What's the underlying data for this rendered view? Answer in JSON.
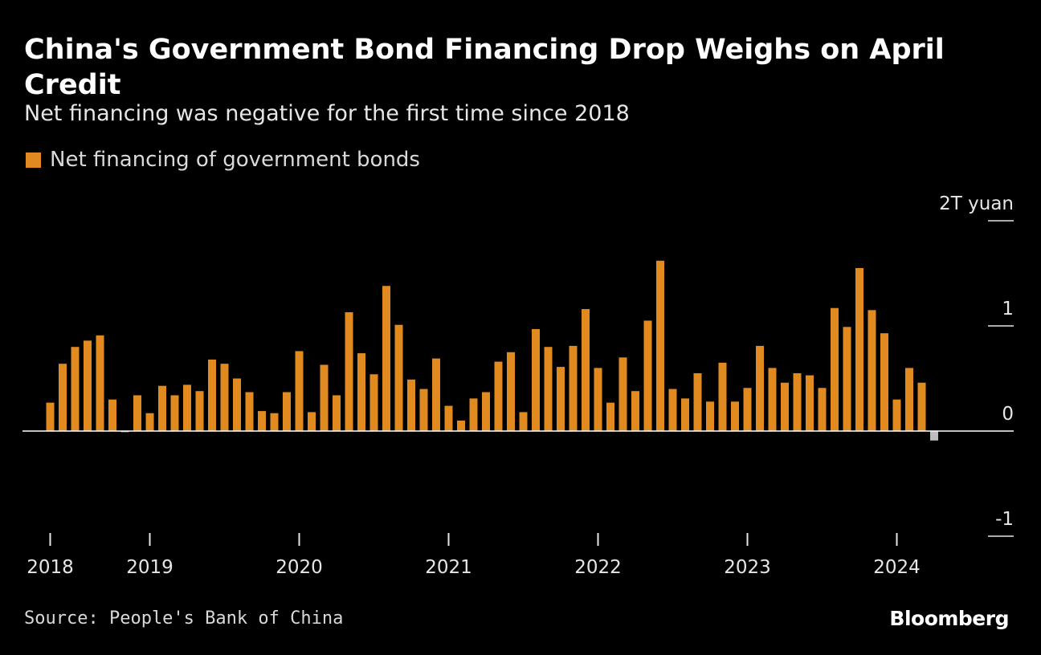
{
  "header": {
    "title": "China's Government Bond Financing Drop Weighs on April Credit",
    "subtitle": "Net financing was negative for the first time since 2018"
  },
  "legend": {
    "label": "Net financing of government bonds",
    "color": "#e08a1f"
  },
  "footer": {
    "source": "Source: People's Bank of China",
    "brand": "Bloomberg"
  },
  "chart_data": {
    "type": "bar",
    "title": "China's Government Bond Financing Drop Weighs on April Credit",
    "subtitle": "Net financing was negative for the first time since 2018",
    "unit": "T yuan",
    "ylim": [
      -1,
      2
    ],
    "y_ticks": [
      {
        "value": 2,
        "label": "2T yuan"
      },
      {
        "value": 1,
        "label": "1"
      },
      {
        "value": 0,
        "label": "0"
      },
      {
        "value": -1,
        "label": "-1"
      }
    ],
    "x_ticks": [
      {
        "month_index": 0,
        "label": "2018"
      },
      {
        "month_index": 8,
        "label": "2019"
      },
      {
        "month_index": 20,
        "label": "2020"
      },
      {
        "month_index": 32,
        "label": "2021"
      },
      {
        "month_index": 44,
        "label": "2022"
      },
      {
        "month_index": 56,
        "label": "2023"
      },
      {
        "month_index": 68,
        "label": "2024"
      }
    ],
    "bar_color": "#e08a1f",
    "negative_color": "#bdbdbd",
    "series": [
      {
        "name": "Net financing of government bonds",
        "values": [
          0.27,
          0.64,
          0.8,
          0.86,
          0.91,
          0.3,
          -0.01,
          0.34,
          0.17,
          0.43,
          0.34,
          0.44,
          0.38,
          0.68,
          0.64,
          0.5,
          0.37,
          0.19,
          0.17,
          0.37,
          0.76,
          0.18,
          0.63,
          0.34,
          1.13,
          0.74,
          0.54,
          1.38,
          1.01,
          0.49,
          0.4,
          0.69,
          0.24,
          0.1,
          0.31,
          0.37,
          0.66,
          0.75,
          0.18,
          0.97,
          0.8,
          0.61,
          0.81,
          1.16,
          0.6,
          0.27,
          0.7,
          0.38,
          1.05,
          1.62,
          0.4,
          0.31,
          0.55,
          0.28,
          0.65,
          0.28,
          0.41,
          0.81,
          0.6,
          0.46,
          0.55,
          0.53,
          0.41,
          1.17,
          0.99,
          1.55,
          1.15,
          0.93,
          0.3,
          0.6,
          0.46,
          -0.09
        ]
      }
    ]
  }
}
